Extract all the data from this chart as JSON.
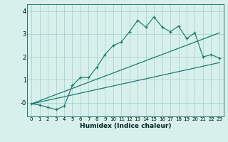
{
  "title": "",
  "xlabel": "Humidex (Indice chaleur)",
  "background_color": "#d8f0ec",
  "grid_color": "#a8d4ce",
  "line_color": "#1a7a6e",
  "xlim": [
    -0.5,
    23.5
  ],
  "ylim": [
    -0.6,
    4.3
  ],
  "xticks": [
    0,
    1,
    2,
    3,
    4,
    5,
    6,
    7,
    8,
    9,
    10,
    11,
    12,
    13,
    14,
    15,
    16,
    17,
    18,
    19,
    20,
    21,
    22,
    23
  ],
  "yticks": [
    0,
    1,
    2,
    3,
    4
  ],
  "ytick_labels": [
    "-0",
    "1",
    "2",
    "3",
    "4"
  ],
  "main_line_x": [
    0,
    1,
    2,
    3,
    4,
    5,
    6,
    7,
    8,
    9,
    10,
    11,
    12,
    13,
    14,
    15,
    16,
    17,
    18,
    19,
    20,
    21,
    22,
    23
  ],
  "main_line_y": [
    -0.05,
    -0.1,
    -0.2,
    -0.3,
    -0.15,
    0.75,
    1.1,
    1.1,
    1.55,
    2.1,
    2.5,
    2.65,
    3.1,
    3.6,
    3.3,
    3.75,
    3.3,
    3.1,
    3.35,
    2.8,
    3.05,
    2.0,
    2.1,
    1.95
  ],
  "line1_x": [
    0,
    23
  ],
  "line1_y": [
    -0.05,
    3.05
  ],
  "line2_x": [
    0,
    23
  ],
  "line2_y": [
    -0.05,
    1.75
  ]
}
